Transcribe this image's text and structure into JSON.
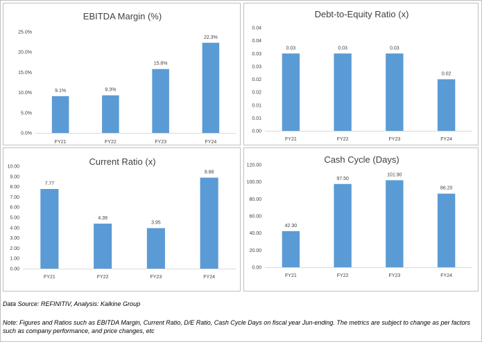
{
  "footer": {
    "source": "Data Source: REFINITIV, Analysis: Kalkine Group",
    "note": "Note: Figures and Ratios such as EBITDA Margin, Current Ratio, D/E Ratio, Cash Cycle Days on fiscal year Jun-ending. The metrics are subject to change as per factors such as company performance, and price changes, etc"
  },
  "colors": {
    "bar": "#5b9bd5",
    "axis": "#d9d9d9",
    "text": "#404040"
  },
  "chart_data": [
    {
      "id": "ebitda",
      "type": "bar",
      "title": "EBITDA Margin (%)",
      "categories": [
        "FY21",
        "FY22",
        "FY23",
        "FY24"
      ],
      "values": [
        9.1,
        9.3,
        15.8,
        22.3
      ],
      "data_labels": [
        "9.1%",
        "9.3%",
        "15.8%",
        "22.3%"
      ],
      "ylim": [
        0,
        25
      ],
      "yticks": [
        0,
        5,
        10,
        15,
        20,
        25
      ],
      "ytick_labels": [
        "0.0%",
        "5.0%",
        "10.0%",
        "15.0%",
        "20.0%",
        "25.0%"
      ],
      "grid": false,
      "legend": "none"
    },
    {
      "id": "de",
      "type": "bar",
      "title": "Debt-to-Equity Ratio (x)",
      "categories": [
        "FY21",
        "FY22",
        "FY23",
        "FY24"
      ],
      "values": [
        0.03,
        0.03,
        0.03,
        0.02
      ],
      "data_labels": [
        "0.03",
        "0.03",
        "0.03",
        "0.02"
      ],
      "ylim": [
        0,
        0.04
      ],
      "yticks": [
        0,
        0.005,
        0.01,
        0.015,
        0.02,
        0.025,
        0.03,
        0.035,
        0.04
      ],
      "ytick_labels": [
        "0.00",
        "0.01",
        "0.01",
        "0.02",
        "0.02",
        "0.03",
        "0.03",
        "0.04",
        "0.04"
      ],
      "grid": false,
      "legend": "none"
    },
    {
      "id": "current",
      "type": "bar",
      "title": "Current Ratio (x)",
      "categories": [
        "FY21",
        "FY22",
        "FY23",
        "FY24"
      ],
      "values": [
        7.77,
        4.39,
        3.95,
        8.88
      ],
      "data_labels": [
        "7.77",
        "4.39",
        "3.95",
        "8.88"
      ],
      "ylim": [
        0,
        10
      ],
      "yticks": [
        0,
        1,
        2,
        3,
        4,
        5,
        6,
        7,
        8,
        9,
        10
      ],
      "ytick_labels": [
        "0.00",
        "1.00",
        "2.00",
        "3.00",
        "4.00",
        "5.00",
        "6.00",
        "7.00",
        "8.00",
        "9.00",
        "10.00"
      ],
      "grid": false,
      "legend": "none"
    },
    {
      "id": "cash",
      "type": "bar",
      "title": "Cash Cycle (Days)",
      "categories": [
        "FY21",
        "FY22",
        "FY23",
        "FY24"
      ],
      "values": [
        42.3,
        97.5,
        101.9,
        86.2
      ],
      "data_labels": [
        "42.30",
        "97.50",
        "101.90",
        "86.20"
      ],
      "ylim": [
        0,
        120
      ],
      "yticks": [
        0,
        20,
        40,
        60,
        80,
        100,
        120
      ],
      "ytick_labels": [
        "0.00",
        "20.00",
        "40.00",
        "60.00",
        "80.00",
        "100.00",
        "120.00"
      ],
      "grid": false,
      "legend": "none"
    }
  ]
}
